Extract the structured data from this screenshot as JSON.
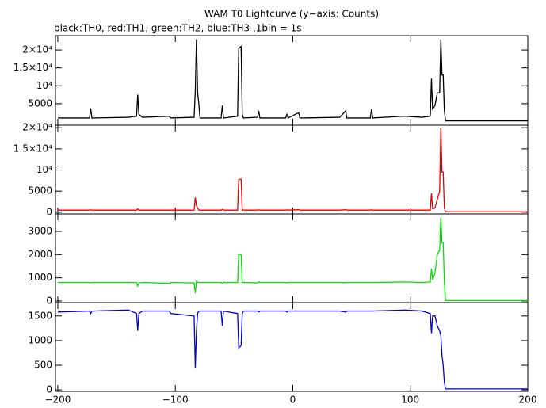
{
  "chart_data": [
    {
      "type": "line",
      "title": "WAM T0 Lightcurve (y−axis: Counts)",
      "subtitle": "black:TH0, red:TH1, green:TH2, blue:TH3 ,1bin = 1s",
      "x": [
        -200,
        -173,
        -172,
        -171,
        -140,
        -133,
        -132,
        -131,
        -128,
        -105,
        -104,
        -84,
        -83,
        -82,
        -81,
        -80,
        -79,
        -61,
        -60,
        -59,
        -47,
        -46,
        -44,
        -43,
        -42,
        -30,
        -29,
        -28,
        -6,
        -5,
        -4,
        5,
        6,
        40,
        45,
        46,
        66,
        67,
        68,
        95,
        110,
        117,
        118,
        119,
        121,
        123,
        125,
        126,
        127,
        128,
        129,
        130,
        200
      ],
      "series": [
        {
          "color": "#000000",
          "values": [
            1000,
            1000,
            3700,
            1000,
            1200,
            1500,
            7500,
            2000,
            1200,
            1500,
            1000,
            1200,
            8500,
            23000,
            8000,
            5000,
            1000,
            1000,
            4500,
            1000,
            1500,
            20500,
            21000,
            2000,
            1000,
            1200,
            3000,
            1000,
            1000,
            2000,
            1000,
            2500,
            1000,
            1200,
            3000,
            1000,
            1000,
            3500,
            1000,
            1500,
            1200,
            1500,
            12000,
            3500,
            4500,
            8000,
            8000,
            23000,
            13000,
            13000,
            3000,
            200,
            200
          ]
        }
      ],
      "xlim": [
        -202,
        200
      ],
      "xticks": [
        -200,
        -100,
        0,
        100,
        200
      ],
      "ylim": [
        -1000,
        24000
      ],
      "yticks": [
        5000,
        {
          "value": 10000,
          "label": "10⁴"
        },
        {
          "value": 15000,
          "label": "1.5×10⁴"
        },
        {
          "value": 20000,
          "label": "2×10⁴"
        }
      ]
    },
    {
      "type": "line",
      "x": [
        -200,
        -173,
        -172,
        -171,
        -140,
        -133,
        -132,
        -131,
        -128,
        -105,
        -104,
        -84,
        -83,
        -82,
        -81,
        -80,
        -79,
        -61,
        -60,
        -59,
        -47,
        -46,
        -44,
        -43,
        -42,
        -30,
        -29,
        -28,
        -6,
        -5,
        -4,
        5,
        6,
        40,
        45,
        46,
        66,
        67,
        68,
        95,
        110,
        117,
        118,
        119,
        121,
        123,
        125,
        126,
        127,
        128,
        129,
        130,
        200
      ],
      "series": [
        {
          "color": "#e00000",
          "values": [
            500,
            500,
            600,
            500,
            500,
            500,
            800,
            500,
            500,
            500,
            500,
            500,
            3500,
            1500,
            1000,
            500,
            500,
            500,
            700,
            500,
            500,
            7800,
            7800,
            500,
            500,
            500,
            600,
            500,
            500,
            600,
            500,
            600,
            500,
            500,
            600,
            500,
            500,
            600,
            500,
            500,
            500,
            500,
            4500,
            800,
            1000,
            3000,
            5000,
            20000,
            9500,
            9500,
            1000,
            100,
            100
          ]
        }
      ],
      "xlim": [
        -202,
        200
      ],
      "xticks": [
        -200,
        -100,
        0,
        100,
        200
      ],
      "ylim": [
        -400,
        20600
      ],
      "yticks": [
        0,
        5000,
        {
          "value": 10000,
          "label": "10⁴"
        },
        {
          "value": 15000,
          "label": "1.5×10⁴"
        },
        {
          "value": 20000,
          "label": "2×10⁴"
        }
      ]
    },
    {
      "type": "line",
      "x": [
        -200,
        -173,
        -172,
        -171,
        -140,
        -133,
        -132,
        -131,
        -128,
        -105,
        -104,
        -84,
        -83,
        -82,
        -81,
        -80,
        -79,
        -61,
        -60,
        -59,
        -47,
        -46,
        -44,
        -43,
        -42,
        -30,
        -29,
        -28,
        -6,
        -5,
        -4,
        5,
        6,
        40,
        45,
        46,
        66,
        67,
        68,
        95,
        110,
        117,
        118,
        119,
        121,
        123,
        125,
        126,
        127,
        128,
        129,
        130,
        200
      ],
      "series": [
        {
          "color": "#00e000",
          "values": [
            800,
            800,
            780,
            800,
            800,
            800,
            650,
            780,
            800,
            760,
            800,
            780,
            350,
            850,
            800,
            800,
            800,
            800,
            750,
            800,
            800,
            2000,
            2000,
            800,
            800,
            780,
            820,
            800,
            800,
            780,
            800,
            800,
            800,
            800,
            790,
            800,
            800,
            800,
            800,
            820,
            800,
            820,
            1400,
            900,
            1200,
            2000,
            2200,
            3600,
            2500,
            2500,
            800,
            20,
            20
          ]
        }
      ],
      "xlim": [
        -202,
        200
      ],
      "xticks": [
        -200,
        -100,
        0,
        100,
        200
      ],
      "ylim": [
        -70,
        3750
      ],
      "yticks": [
        0,
        1000,
        2000,
        3000
      ]
    },
    {
      "type": "line",
      "x": [
        -200,
        -173,
        -172,
        -171,
        -140,
        -133,
        -132,
        -131,
        -128,
        -105,
        -104,
        -84,
        -83,
        -82,
        -81,
        -80,
        -79,
        -61,
        -60,
        -59,
        -47,
        -46,
        -44,
        -43,
        -42,
        -30,
        -29,
        -28,
        -6,
        -5,
        -4,
        5,
        6,
        40,
        45,
        46,
        66,
        67,
        68,
        95,
        110,
        117,
        118,
        119,
        121,
        123,
        125,
        126,
        127,
        128,
        129,
        130,
        200
      ],
      "series": [
        {
          "color": "#0000d0",
          "values": [
            1580,
            1600,
            1550,
            1600,
            1620,
            1550,
            1200,
            1550,
            1600,
            1600,
            1550,
            1500,
            450,
            1200,
            1550,
            1600,
            1600,
            1600,
            1300,
            1600,
            1550,
            850,
            900,
            1550,
            1600,
            1600,
            1580,
            1600,
            1600,
            1580,
            1600,
            1600,
            1600,
            1600,
            1580,
            1600,
            1600,
            1600,
            1600,
            1620,
            1600,
            1550,
            1150,
            1500,
            1500,
            1300,
            1200,
            1100,
            700,
            500,
            150,
            20,
            20
          ]
        }
      ],
      "xlim": [
        -202,
        200
      ],
      "xticks": [
        {
          "value": -200,
          "label": "−200"
        },
        {
          "value": -100,
          "label": "−100"
        },
        0,
        100,
        200
      ],
      "ylim": [
        -30,
        1770
      ],
      "yticks": [
        0,
        500,
        1000,
        1500
      ]
    }
  ]
}
